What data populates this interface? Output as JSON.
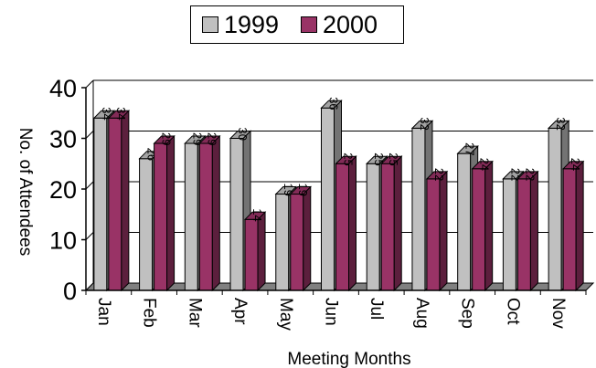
{
  "chart_data": {
    "type": "bar",
    "title": "",
    "xlabel": "Meeting Months",
    "ylabel": "No. of Attendees",
    "categories": [
      "Jan",
      "Feb",
      "Mar",
      "Apr",
      "May",
      "Jun",
      "Jul",
      "Aug",
      "Sep",
      "Oct",
      "Nov"
    ],
    "series": [
      {
        "name": "1999",
        "values": [
          34,
          26,
          29,
          30,
          19,
          36,
          25,
          32,
          27,
          22,
          32
        ],
        "color": "#c0c0c0"
      },
      {
        "name": "2000",
        "values": [
          34,
          29,
          29,
          14,
          19,
          25,
          25,
          22,
          24,
          22,
          24
        ],
        "color": "#993366"
      }
    ],
    "ylim": [
      0,
      40
    ],
    "yticks": [
      "0",
      "10",
      "20",
      "30",
      "40"
    ],
    "grid": true,
    "legend_position": "top-center"
  }
}
